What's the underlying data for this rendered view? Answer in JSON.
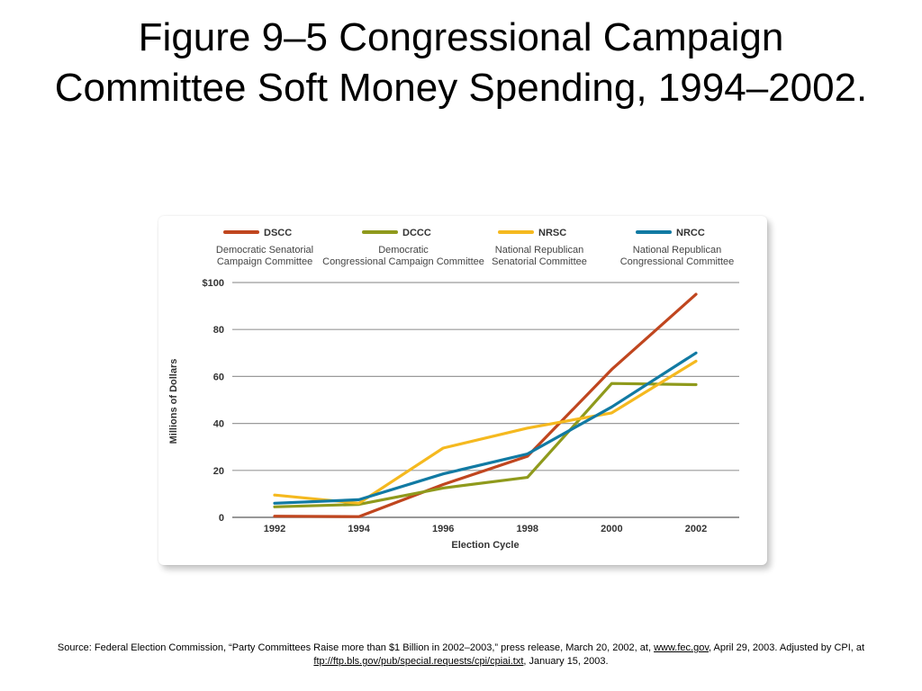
{
  "slide": {
    "title": "Figure 9–5 Congressional Campaign Committee Soft Money Spending, 1994–2002."
  },
  "source": {
    "prefix": "Source: Federal Election Commission, “Party Committees Raise more than $1 Billion in 2002–2003,” press release, March 20, 2002, at, ",
    "link1": "www.fec.gov",
    "middle": ", April 29, 2003. Adjusted by CPI, at ",
    "link2": "ftp://ftp.bls.gov/pub/special.requests/cpi/cpiai.txt",
    "suffix": ", January 15, 2003."
  },
  "chart_data": {
    "type": "line",
    "x": [
      1992,
      1994,
      1996,
      1998,
      2000,
      2002
    ],
    "xlabel": "Election Cycle",
    "ylabel": "Millions of Dollars",
    "ylim": [
      0,
      100
    ],
    "yticks": [
      0,
      20,
      40,
      60,
      80,
      100
    ],
    "ytick_labels": [
      "0",
      "20",
      "40",
      "60",
      "80",
      "$100"
    ],
    "grid": true,
    "legend_position": "top",
    "series": [
      {
        "name": "DSCC",
        "description": "Democratic Senatorial Campaign Committee",
        "color": "#c0461f",
        "values": [
          0.5,
          0.3,
          14,
          26,
          63,
          95
        ]
      },
      {
        "name": "DCCC",
        "description": "Democratic Congressional Campaign Committee",
        "color": "#8f9a1c",
        "values": [
          4.5,
          5.5,
          12.5,
          17,
          57,
          56.5
        ]
      },
      {
        "name": "NRSC",
        "description": "National Republican Senatorial Committee",
        "color": "#f5b91f",
        "values": [
          9.5,
          6,
          29.5,
          38,
          44.5,
          66.5
        ]
      },
      {
        "name": "NRCC",
        "description": "National Republican Congressional Committee",
        "color": "#117aa3",
        "values": [
          6,
          7.5,
          18.5,
          27,
          47,
          70
        ]
      }
    ]
  }
}
